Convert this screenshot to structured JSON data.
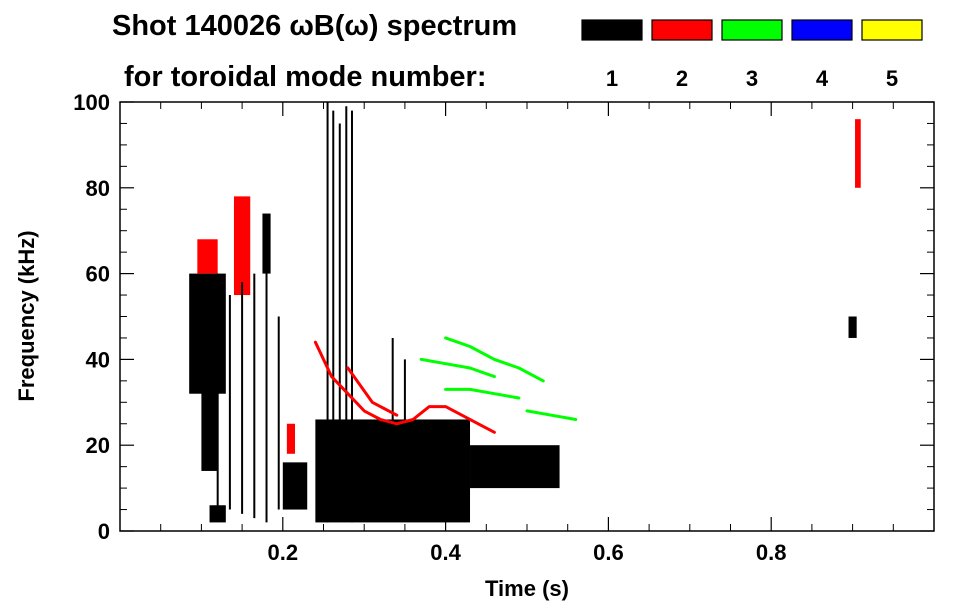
{
  "chart_data": {
    "type": "heatmap",
    "title_line1": "Shot 140026 ωB(ω) spectrum",
    "title_line2": "for toroidal mode number:",
    "xlabel": "Time (s)",
    "ylabel": "Frequency (kHz)",
    "xlim": [
      0.0,
      1.0
    ],
    "ylim": [
      0,
      100
    ],
    "x_ticks": [
      0.2,
      0.4,
      0.6,
      0.8
    ],
    "x_tick_labels": [
      "0.2",
      "0.4",
      "0.6",
      "0.8"
    ],
    "y_ticks": [
      0,
      20,
      40,
      60,
      80,
      100
    ],
    "y_tick_labels": [
      "0",
      "20",
      "40",
      "60",
      "80",
      "100"
    ],
    "legend_position": "top-right",
    "legend": [
      {
        "label": "1",
        "color": "#000000"
      },
      {
        "label": "2",
        "color": "#ff0000"
      },
      {
        "label": "3",
        "color": "#00ff00"
      },
      {
        "label": "4",
        "color": "#0000ff"
      },
      {
        "label": "5",
        "color": "#ffff00"
      }
    ],
    "regions": [
      {
        "mode": 1,
        "t": [
          0.085,
          0.13
        ],
        "f": [
          32,
          60
        ]
      },
      {
        "mode": 1,
        "t": [
          0.1,
          0.12
        ],
        "f": [
          14,
          34
        ]
      },
      {
        "mode": 1,
        "t": [
          0.11,
          0.13
        ],
        "f": [
          2,
          6
        ]
      },
      {
        "mode": 1,
        "t": [
          0.175,
          0.185
        ],
        "f": [
          60,
          74
        ]
      },
      {
        "mode": 1,
        "t": [
          0.2,
          0.23
        ],
        "f": [
          5,
          16
        ]
      },
      {
        "mode": 1,
        "t": [
          0.24,
          0.43
        ],
        "f": [
          2,
          26
        ]
      },
      {
        "mode": 1,
        "t": [
          0.43,
          0.54
        ],
        "f": [
          10,
          20
        ]
      },
      {
        "mode": 1,
        "t": [
          0.895,
          0.905
        ],
        "f": [
          45,
          50
        ]
      },
      {
        "mode": 2,
        "t": [
          0.095,
          0.12
        ],
        "f": [
          60,
          68
        ]
      },
      {
        "mode": 2,
        "t": [
          0.14,
          0.16
        ],
        "f": [
          55,
          78
        ]
      },
      {
        "mode": 2,
        "t": [
          0.205,
          0.215
        ],
        "f": [
          18,
          25
        ]
      },
      {
        "mode": 2,
        "t": [
          0.903,
          0.91
        ],
        "f": [
          80,
          96
        ]
      }
    ],
    "vertical_streaks": [
      {
        "mode": 1,
        "t": 0.12,
        "f": [
          3,
          60
        ]
      },
      {
        "mode": 1,
        "t": 0.135,
        "f": [
          5,
          55
        ]
      },
      {
        "mode": 1,
        "t": 0.15,
        "f": [
          4,
          58
        ]
      },
      {
        "mode": 1,
        "t": 0.165,
        "f": [
          3,
          60
        ]
      },
      {
        "mode": 1,
        "t": 0.18,
        "f": [
          2,
          62
        ]
      },
      {
        "mode": 1,
        "t": 0.195,
        "f": [
          5,
          50
        ]
      },
      {
        "mode": 1,
        "t": 0.255,
        "f": [
          2,
          100
        ]
      },
      {
        "mode": 1,
        "t": 0.262,
        "f": [
          5,
          98
        ]
      },
      {
        "mode": 1,
        "t": 0.27,
        "f": [
          3,
          95
        ]
      },
      {
        "mode": 1,
        "t": 0.278,
        "f": [
          4,
          99
        ]
      },
      {
        "mode": 1,
        "t": 0.285,
        "f": [
          2,
          98
        ]
      },
      {
        "mode": 1,
        "t": 0.335,
        "f": [
          5,
          45
        ]
      },
      {
        "mode": 1,
        "t": 0.35,
        "f": [
          8,
          40
        ]
      }
    ],
    "mode_lines": [
      {
        "mode": 2,
        "points": [
          [
            0.24,
            44
          ],
          [
            0.26,
            36
          ],
          [
            0.28,
            32
          ],
          [
            0.3,
            28
          ],
          [
            0.32,
            26
          ],
          [
            0.34,
            25
          ],
          [
            0.36,
            26
          ],
          [
            0.38,
            29
          ],
          [
            0.4,
            29
          ],
          [
            0.42,
            27
          ],
          [
            0.44,
            25
          ],
          [
            0.46,
            23
          ]
        ]
      },
      {
        "mode": 2,
        "points": [
          [
            0.28,
            38
          ],
          [
            0.31,
            30
          ],
          [
            0.34,
            27
          ]
        ]
      },
      {
        "mode": 3,
        "points": [
          [
            0.4,
            45
          ],
          [
            0.43,
            43
          ],
          [
            0.46,
            40
          ],
          [
            0.49,
            38
          ],
          [
            0.52,
            35
          ]
        ]
      },
      {
        "mode": 3,
        "points": [
          [
            0.37,
            40
          ],
          [
            0.4,
            39
          ],
          [
            0.43,
            38
          ],
          [
            0.46,
            36
          ]
        ]
      },
      {
        "mode": 3,
        "points": [
          [
            0.4,
            33
          ],
          [
            0.43,
            33
          ],
          [
            0.46,
            32
          ],
          [
            0.49,
            31
          ]
        ]
      },
      {
        "mode": 3,
        "points": [
          [
            0.5,
            28
          ],
          [
            0.53,
            27
          ],
          [
            0.56,
            26
          ]
        ]
      }
    ]
  }
}
